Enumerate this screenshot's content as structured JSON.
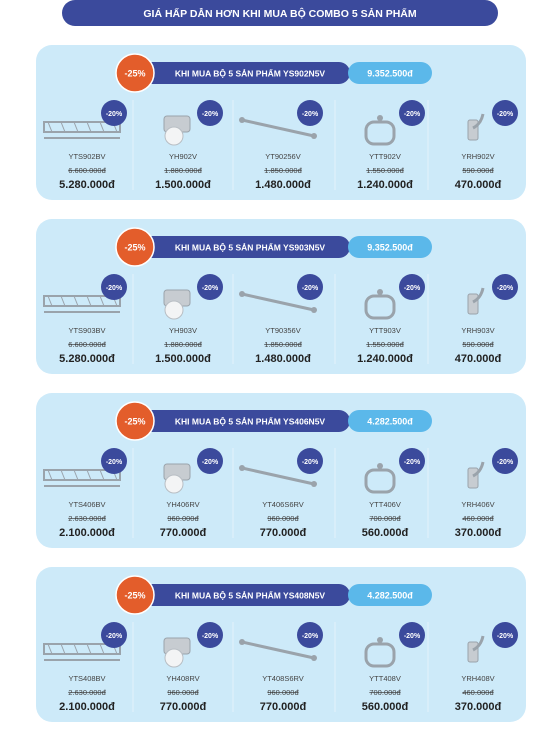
{
  "header": {
    "title": "GIÁ HẤP DẪN HƠN KHI MUA BỘ COMBO 5 SẢN PHẨM"
  },
  "combos": [
    {
      "discount": "-25%",
      "label": "KHI MUA BỘ 5 SẢN PHẨM YS902N5V",
      "price": "9.352.500đ",
      "products": [
        {
          "badge": "-20%",
          "code": "YTS902BV",
          "old_price": "6.600.000đ",
          "price": "5.280.000đ"
        },
        {
          "badge": "-20%",
          "code": "YH902V",
          "old_price": "1.880.000đ",
          "price": "1.500.000đ"
        },
        {
          "badge": "-20%",
          "code": "YT90256V",
          "old_price": "1.850.000đ",
          "price": "1.480.000đ"
        },
        {
          "badge": "-20%",
          "code": "YTT902V",
          "old_price": "1.550.000đ",
          "price": "1.240.000đ"
        },
        {
          "badge": "-20%",
          "code": "YRH902V",
          "old_price": "590.000đ",
          "price": "470.000đ"
        }
      ]
    },
    {
      "discount": "-25%",
      "label": "KHI MUA BỘ 5 SẢN PHẨM YS903N5V",
      "price": "9.352.500đ",
      "products": [
        {
          "badge": "-20%",
          "code": "YTS903BV",
          "old_price": "6.600.000đ",
          "price": "5.280.000đ"
        },
        {
          "badge": "-20%",
          "code": "YH903V",
          "old_price": "1.880.000đ",
          "price": "1.500.000đ"
        },
        {
          "badge": "-20%",
          "code": "YT90356V",
          "old_price": "1.850.000đ",
          "price": "1.480.000đ"
        },
        {
          "badge": "-20%",
          "code": "YTT903V",
          "old_price": "1.550.000đ",
          "price": "1.240.000đ"
        },
        {
          "badge": "-20%",
          "code": "YRH903V",
          "old_price": "590.000đ",
          "price": "470.000đ"
        }
      ]
    },
    {
      "discount": "-25%",
      "label": "KHI MUA BỘ 5 SẢN PHẨM YS406N5V",
      "price": "4.282.500đ",
      "products": [
        {
          "badge": "-20%",
          "code": "YTS406BV",
          "old_price": "2.630.000đ",
          "price": "2.100.000đ"
        },
        {
          "badge": "-20%",
          "code": "YH406RV",
          "old_price": "960.000đ",
          "price": "770.000đ"
        },
        {
          "badge": "-20%",
          "code": "YT406S6RV",
          "old_price": "960.000đ",
          "price": "770.000đ"
        },
        {
          "badge": "-20%",
          "code": "YTT406V",
          "old_price": "700.000đ",
          "price": "560.000đ"
        },
        {
          "badge": "-20%",
          "code": "YRH406V",
          "old_price": "460.000đ",
          "price": "370.000đ"
        }
      ]
    },
    {
      "discount": "-25%",
      "label": "KHI MUA BỘ 5 SẢN PHẨM YS408N5V",
      "price": "4.282.500đ",
      "products": [
        {
          "badge": "-20%",
          "code": "YTS408BV",
          "old_price": "2.630.000đ",
          "price": "2.100.000đ"
        },
        {
          "badge": "-20%",
          "code": "YH408RV",
          "old_price": "960.000đ",
          "price": "770.000đ"
        },
        {
          "badge": "-20%",
          "code": "YT408S6RV",
          "old_price": "960.000đ",
          "price": "770.000đ"
        },
        {
          "badge": "-20%",
          "code": "YTT408V",
          "old_price": "700.000đ",
          "price": "560.000đ"
        },
        {
          "badge": "-20%",
          "code": "YRH408V",
          "old_price": "460.000đ",
          "price": "370.000đ"
        }
      ]
    }
  ]
}
